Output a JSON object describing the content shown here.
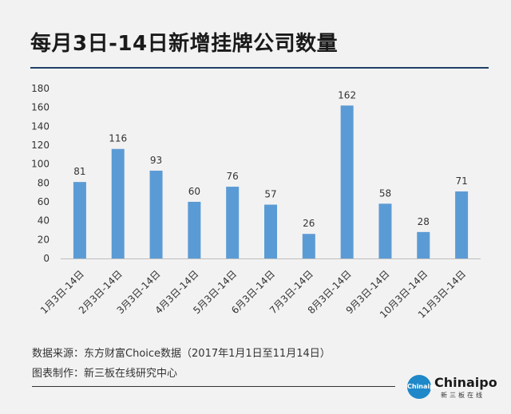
{
  "chart_data": {
    "type": "bar",
    "title": "每月3日-14日新增挂牌公司数量",
    "categories": [
      "1月3日-14日",
      "2月3日-14日",
      "3月3日-14日",
      "4月3日-14日",
      "5月3日-14日",
      "6月3日-14日",
      "7月3日-14日",
      "8月3日-14日",
      "9月3日-14日",
      "10月3日-14日",
      "11月3日-14日"
    ],
    "values": [
      81,
      116,
      93,
      60,
      76,
      57,
      26,
      162,
      58,
      28,
      71
    ],
    "yticks": [
      0,
      20,
      40,
      60,
      80,
      100,
      120,
      140,
      160,
      180
    ],
    "ylim": [
      0,
      180
    ],
    "xlabel": "",
    "ylabel": "",
    "bar_color": "#5b9bd5",
    "grid": false,
    "legend": "none"
  },
  "footer": {
    "source": "数据来源：东方财富Choice数据（2017年1月1日至11月14日）",
    "credit": "图表制作：新三板在线研究中心"
  },
  "logo": {
    "name": "Chinaipo",
    "sub": "新三板在线",
    "badge": "Chinaipo"
  }
}
